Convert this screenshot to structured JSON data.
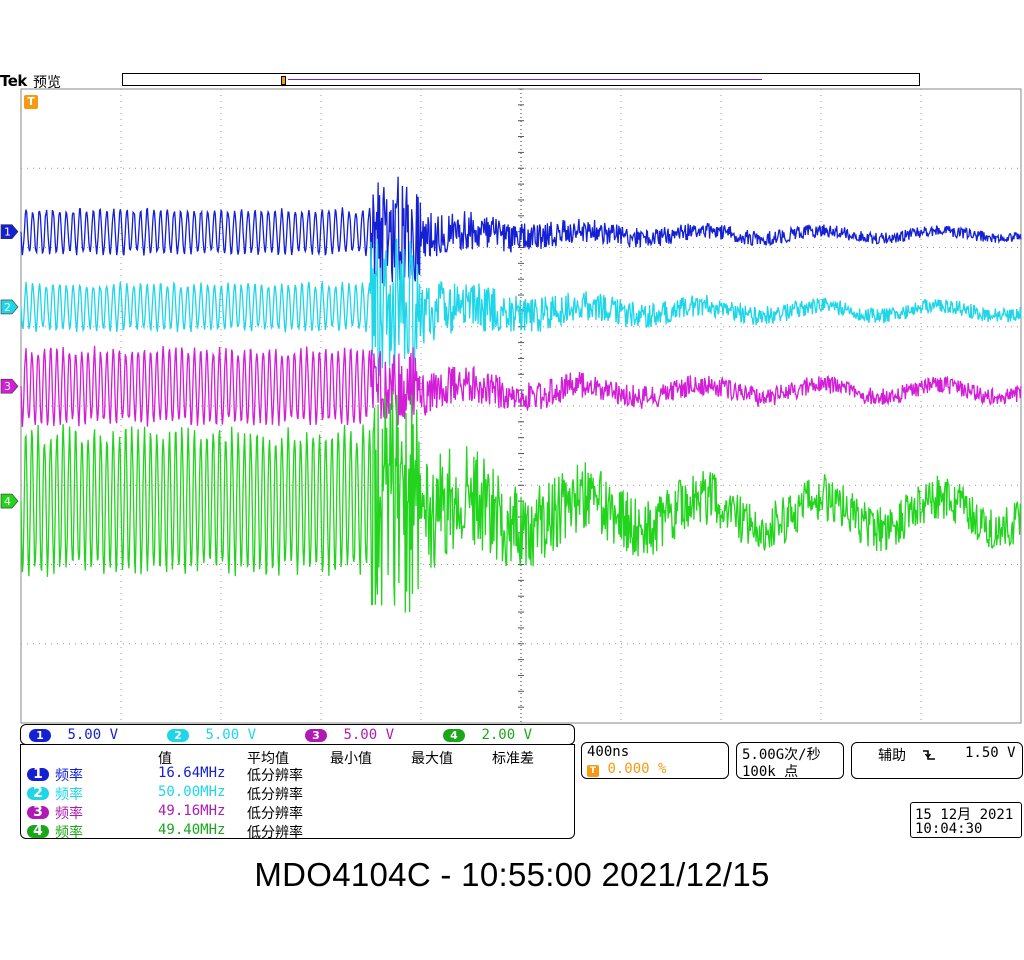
{
  "header": {
    "brand": "Tek",
    "mode": "预览"
  },
  "colors": {
    "ch1": "#1420d2",
    "ch2": "#1ed6e8",
    "ch3": "#d21ed6",
    "ch4": "#23d41e",
    "ch4_badge": "#1aa81a",
    "trigger": "#f59a12",
    "grid": "#888888"
  },
  "chart_data": {
    "type": "line",
    "title": "",
    "xlabel": "",
    "ylabel": "",
    "grid": true,
    "timebase_per_div": "400ns",
    "x_divisions": 10,
    "y_divisions": 8,
    "xlim_div": [
      0,
      10
    ],
    "series": [
      {
        "name": "1",
        "scale": "5.00 V",
        "offset_div": -1.8,
        "before_amp_div": 0.27,
        "after_amp_div": 0.06,
        "cycles_before": 52,
        "burst_peak_div": 0.7
      },
      {
        "name": "2",
        "scale": "5.00 V",
        "offset_div": -2.75,
        "before_amp_div": 0.28,
        "after_amp_div": 0.08,
        "cycles_before": 52,
        "burst_peak_div": 0.9
      },
      {
        "name": "3",
        "scale": "5.00 V",
        "offset_div": -3.75,
        "before_amp_div": 0.45,
        "after_amp_div": 0.1,
        "cycles_before": 56,
        "burst_peak_div": 0.5
      },
      {
        "name": "4",
        "scale": "2.00 V",
        "offset_div": -5.2,
        "before_amp_div": 0.85,
        "after_amp_div": 0.25,
        "cycles_before": 56,
        "burst_peak_div": 1.5
      }
    ]
  },
  "channels": [
    {
      "num": "1",
      "scale": "5.00 V"
    },
    {
      "num": "2",
      "scale": "5.00 V"
    },
    {
      "num": "3",
      "scale": "5.00 V"
    },
    {
      "num": "4",
      "scale": "2.00 V"
    }
  ],
  "trigger_marker": "T",
  "measure": {
    "headers": [
      "值",
      "平均值",
      "最小值",
      "最大值",
      "标准差"
    ],
    "rows": [
      {
        "ch": "1",
        "name": "频率",
        "value": "16.64MHz",
        "note": "低分辨率"
      },
      {
        "ch": "2",
        "name": "频率",
        "value": "50.00MHz",
        "note": "低分辨率"
      },
      {
        "ch": "3",
        "name": "频率",
        "value": "49.16MHz",
        "note": "低分辨率"
      },
      {
        "ch": "4",
        "name": "频率",
        "value": "49.40MHz",
        "note": "低分辨率"
      }
    ]
  },
  "timebase": {
    "scale": "400ns",
    "trigger_pos": "0.000 %"
  },
  "acquisition": {
    "rate": "5.00G次/秒",
    "points": "100k 点"
  },
  "trigger": {
    "source": "辅助",
    "slope_icon": "falling-edge-icon",
    "level": "1.50 V"
  },
  "clock": {
    "date": "15 12月 2021",
    "time": "10:04:30"
  },
  "footer": "MDO4104C - 10:55:00   2021/12/15"
}
